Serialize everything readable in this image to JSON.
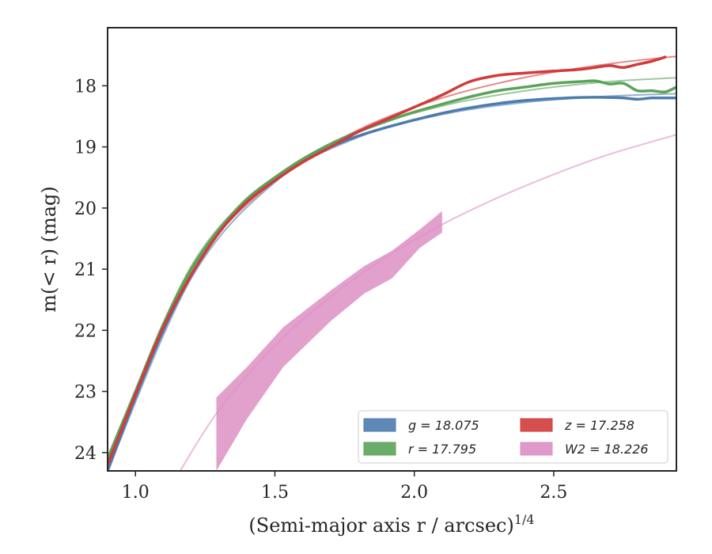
{
  "chart_data": {
    "type": "line",
    "title": "",
    "xlabel": "(Semi-major axis r / arcsec)",
    "xlabel_sup": "1/4",
    "ylabel": "m(< r) (mag)",
    "xlim": [
      0.9,
      2.94
    ],
    "ylim": [
      24.3,
      17.05
    ],
    "y_inverted": true,
    "grid": false,
    "legend_position": "lower-right",
    "legend_columns": 2,
    "x_ticks": [
      1.0,
      1.5,
      2.0,
      2.5
    ],
    "x_tick_labels": [
      "1.0",
      "1.5",
      "2.0",
      "2.5"
    ],
    "y_ticks": [
      18,
      19,
      20,
      21,
      22,
      23,
      24
    ],
    "y_tick_labels": [
      "18",
      "19",
      "20",
      "21",
      "22",
      "23",
      "24"
    ],
    "series": [
      {
        "name": "g = 18.075",
        "color": "#4c7cae",
        "data_x": [
          0.9,
          1.0,
          1.1,
          1.2,
          1.3,
          1.4,
          1.5,
          1.6,
          1.7,
          1.8,
          1.9,
          2.0,
          2.1,
          2.2,
          2.3,
          2.4,
          2.5,
          2.6,
          2.7,
          2.75,
          2.8,
          2.85,
          2.9,
          2.94
        ],
        "data_y": [
          24.3,
          23.1,
          22.0,
          21.1,
          20.4,
          19.9,
          19.55,
          19.25,
          19.0,
          18.82,
          18.68,
          18.56,
          18.45,
          18.36,
          18.29,
          18.24,
          18.21,
          18.19,
          18.19,
          18.2,
          18.22,
          18.2,
          18.2,
          18.2
        ],
        "model_x": [
          0.9,
          1.2,
          1.5,
          1.8,
          2.1,
          2.4,
          2.7,
          2.94
        ],
        "model_y": [
          24.3,
          21.15,
          19.58,
          18.84,
          18.47,
          18.27,
          18.17,
          18.13
        ]
      },
      {
        "name": "r = 17.795",
        "color": "#5ba35a",
        "data_x": [
          0.9,
          1.0,
          1.1,
          1.2,
          1.3,
          1.4,
          1.5,
          1.6,
          1.7,
          1.8,
          1.9,
          2.0,
          2.1,
          2.2,
          2.3,
          2.4,
          2.5,
          2.6,
          2.65,
          2.7,
          2.75,
          2.8,
          2.85,
          2.9,
          2.94
        ],
        "data_y": [
          24.1,
          23.0,
          21.9,
          21.0,
          20.35,
          19.85,
          19.5,
          19.2,
          18.95,
          18.75,
          18.58,
          18.43,
          18.3,
          18.18,
          18.08,
          18.02,
          17.96,
          17.93,
          17.92,
          17.97,
          17.96,
          18.08,
          18.08,
          18.1,
          18.02
        ],
        "model_x": [
          0.9,
          1.2,
          1.5,
          1.8,
          2.1,
          2.4,
          2.7,
          2.94
        ],
        "model_y": [
          24.15,
          20.95,
          19.5,
          18.75,
          18.33,
          18.08,
          17.93,
          17.87
        ]
      },
      {
        "name": "z = 17.258",
        "color": "#d03c3c",
        "data_x": [
          0.9,
          1.0,
          1.1,
          1.2,
          1.3,
          1.4,
          1.5,
          1.6,
          1.7,
          1.8,
          1.9,
          2.0,
          2.1,
          2.2,
          2.3,
          2.4,
          2.5,
          2.6,
          2.65,
          2.7,
          2.75,
          2.8,
          2.85,
          2.9
        ],
        "data_y": [
          24.2,
          23.05,
          21.95,
          21.1,
          20.4,
          19.9,
          19.55,
          19.25,
          19.0,
          18.75,
          18.55,
          18.35,
          18.15,
          17.93,
          17.83,
          17.79,
          17.76,
          17.73,
          17.7,
          17.67,
          17.7,
          17.65,
          17.6,
          17.53
        ],
        "model_x": [
          0.9,
          1.2,
          1.5,
          1.8,
          2.1,
          2.4,
          2.7,
          2.94
        ],
        "model_y": [
          24.2,
          21.05,
          19.55,
          18.72,
          18.2,
          17.86,
          17.64,
          17.52
        ]
      },
      {
        "name": "W2 = 18.226",
        "color": "#dd8fc4",
        "band_x": [
          1.29,
          1.4,
          1.53,
          1.7,
          1.82,
          1.92,
          2.02,
          2.1
        ],
        "band_upper": [
          23.1,
          22.6,
          21.95,
          21.35,
          20.95,
          20.7,
          20.35,
          20.05
        ],
        "band_lower": [
          24.3,
          23.45,
          22.6,
          21.85,
          21.4,
          21.15,
          20.65,
          20.4
        ],
        "model_x": [
          1.16,
          1.3,
          1.5,
          1.7,
          1.9,
          2.1,
          2.3,
          2.5,
          2.7,
          2.94
        ],
        "model_y": [
          24.3,
          23.3,
          22.25,
          21.45,
          20.8,
          20.27,
          19.83,
          19.45,
          19.12,
          18.8
        ]
      }
    ]
  }
}
